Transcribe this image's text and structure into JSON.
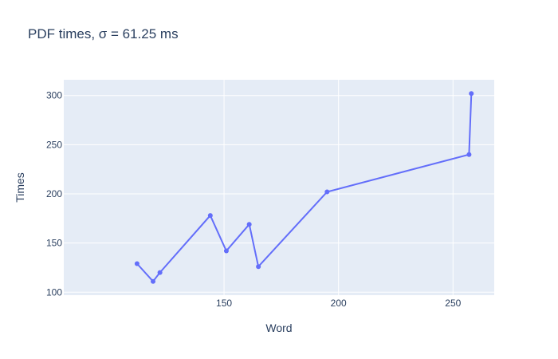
{
  "chart_data": {
    "type": "line",
    "title": "PDF times, σ = 61.25 ms",
    "xlabel": "Word",
    "ylabel": "Times",
    "xlim": [
      80,
      268
    ],
    "ylim": [
      97,
      316
    ],
    "x_ticks": [
      150,
      200,
      250
    ],
    "y_ticks": [
      100,
      150,
      200,
      250,
      300
    ],
    "grid": true,
    "mode": "lines+markers",
    "colors": {
      "line": "#636efa",
      "plot_bg": "#e5ecf6",
      "grid": "#ffffff",
      "text": "#2a3f5f"
    },
    "series": [
      {
        "x": [
          112,
          119,
          122,
          144,
          151,
          161,
          165,
          195,
          257,
          258
        ],
        "y": [
          129,
          111,
          120,
          178,
          142,
          169,
          126,
          202,
          240,
          302
        ]
      }
    ]
  }
}
